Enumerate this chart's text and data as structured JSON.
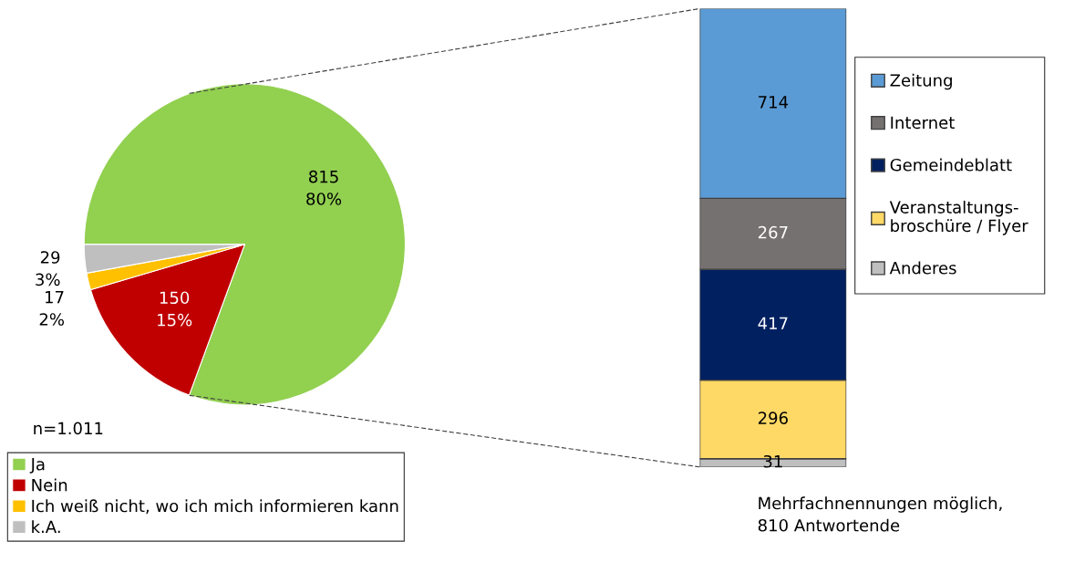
{
  "chart_data": [
    {
      "type": "pie",
      "categories": [
        "Ja",
        "Nein",
        "Ich weiß nicht, wo ich mich informieren kann",
        "k.A."
      ],
      "values": [
        815,
        150,
        17,
        29
      ],
      "colors": [
        "#92d050",
        "#c00000",
        "#ffc000",
        "#bfbfbf"
      ],
      "value_labels": [
        "815\n80%",
        "150\n15%",
        "17\n2%",
        "29\n3%"
      ],
      "legend": "bottom left",
      "annotations": [
        "n=1.011"
      ]
    },
    {
      "type": "bar",
      "stacked": true,
      "categories": [
        null
      ],
      "series": [
        {
          "name": "Anderes",
          "color": "#bfbfbf",
          "values": [
            31
          ]
        },
        {
          "name": "Veranstaltungs-\nbroschüre / Flyer",
          "color": "#ffd966",
          "values": [
            296
          ]
        },
        {
          "name": "Gemeindeblatt",
          "color": "#002060",
          "values": [
            417
          ]
        },
        {
          "name": "Internet",
          "color": "#767171",
          "values": [
            267
          ]
        },
        {
          "name": "Zeitung",
          "color": "#5b9bd5",
          "values": [
            714
          ]
        }
      ],
      "data_labels": true,
      "legend": "right",
      "annotations": [
        "Mehrfachnennungen möglich,\n810 Antwortende"
      ]
    }
  ]
}
